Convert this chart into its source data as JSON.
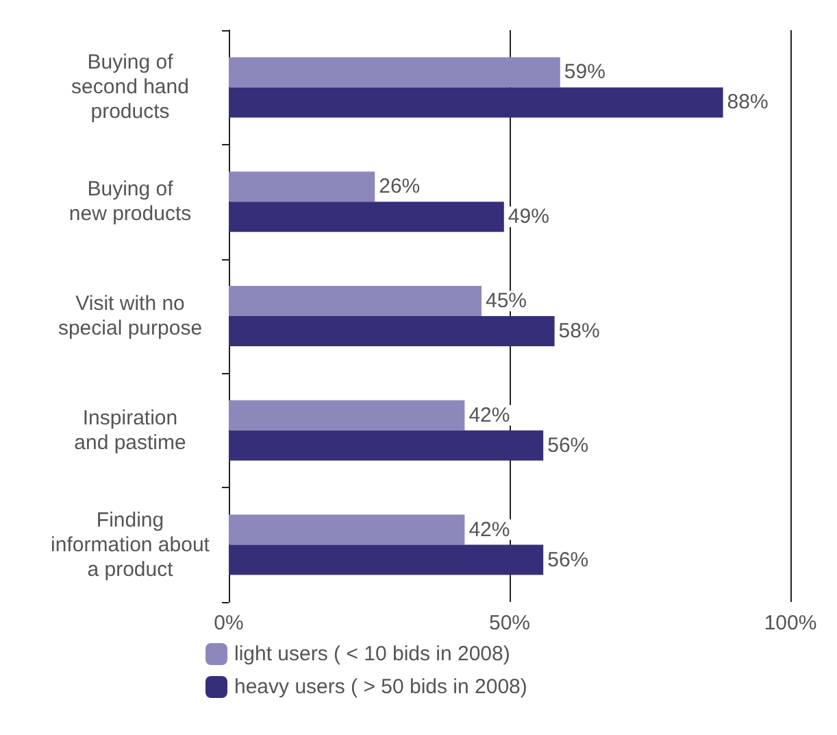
{
  "chart_data": {
    "type": "bar",
    "orientation": "horizontal",
    "categories": [
      "Buying of\nsecond hand\nproducts",
      "Buying of\nnew products",
      "Visit with no\nspecial purpose",
      "Inspiration\nand pastime",
      "Finding\ninformation about\na product"
    ],
    "series": [
      {
        "name": "light users ( < 10 bids in 2008)",
        "color": "#8d88bb",
        "values": [
          59,
          26,
          45,
          42,
          42
        ],
        "value_labels": [
          "59%",
          "26%",
          "45%",
          "42%",
          "42%"
        ]
      },
      {
        "name": "heavy users ( > 50 bids in 2008)",
        "color": "#352f7a",
        "values": [
          88,
          49,
          58,
          56,
          56
        ],
        "value_labels": [
          "88%",
          "49%",
          "58%",
          "56%",
          "56%"
        ]
      }
    ],
    "xlim": [
      0,
      100
    ],
    "xticks": [
      {
        "value": 0,
        "label": "0%"
      },
      {
        "value": 50,
        "label": "50%"
      },
      {
        "value": 100,
        "label": "100%"
      }
    ],
    "grid": "x",
    "legend": "bottom left"
  }
}
